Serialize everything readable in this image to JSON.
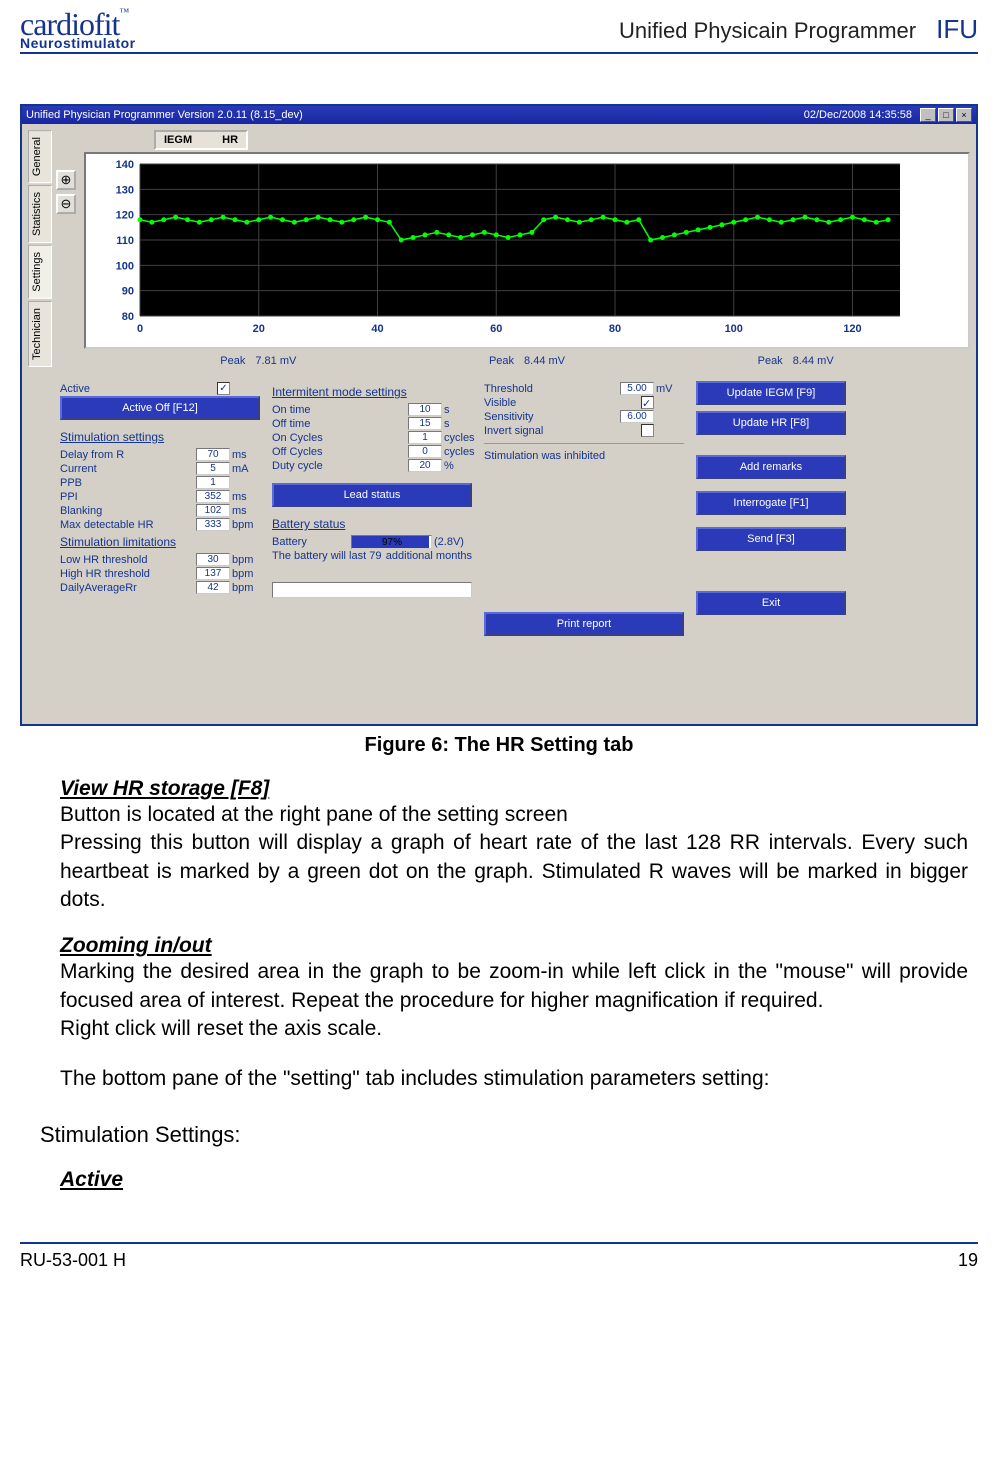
{
  "header": {
    "logo_main": "cardiofit",
    "tm": "™",
    "logo_sub": "Neurostimulator",
    "title": "Unified Physicain Programmer",
    "ifu": "IFU"
  },
  "footer": {
    "doc_id": "RU-53-001 H",
    "page": "19"
  },
  "figure_caption": "Figure 6: The HR Setting tab",
  "doc": {
    "h1": "View HR storage [F8]",
    "p1a": "Button is located at the right pane of the setting screen",
    "p1b": "Pressing this button will display a graph of heart rate of the last 128 RR intervals. Every such heartbeat is marked by a green dot on the graph. Stimulated R waves will be marked in bigger dots.",
    "h2": "Zooming in/out",
    "p2a": "Marking the desired area in the graph to be zoom-in while left click in the \"mouse\" will provide focused area of interest. Repeat the procedure for higher magnification if required.",
    "p2b": "Right click will reset the axis scale.",
    "p3": "The bottom pane of the \"setting\" tab includes stimulation parameters setting:",
    "section": "Stimulation Settings:",
    "h3": "Active"
  },
  "screenshot": {
    "title_left": "Unified Physician Programmer Version    2.0.11    (8.15_dev)",
    "title_right": "02/Dec/2008 14:35:58",
    "tabs": [
      "General",
      "Statistics",
      "Settings",
      "Technician"
    ],
    "legend": {
      "a": "IEGM",
      "b": "HR"
    },
    "chart": {
      "y_ticks": [
        80,
        90,
        100,
        110,
        120,
        130,
        140
      ],
      "x_ticks": [
        0,
        20,
        40,
        60,
        80,
        100,
        120
      ],
      "ylim": [
        80,
        140
      ],
      "xlim": [
        0,
        128
      ],
      "bg": "#000000",
      "grid_color": "#404040",
      "line_color": "#00ff00",
      "series": [
        [
          0,
          118
        ],
        [
          2,
          117
        ],
        [
          4,
          118
        ],
        [
          6,
          119
        ],
        [
          8,
          118
        ],
        [
          10,
          117
        ],
        [
          12,
          118
        ],
        [
          14,
          119
        ],
        [
          16,
          118
        ],
        [
          18,
          117
        ],
        [
          20,
          118
        ],
        [
          22,
          119
        ],
        [
          24,
          118
        ],
        [
          26,
          117
        ],
        [
          28,
          118
        ],
        [
          30,
          119
        ],
        [
          32,
          118
        ],
        [
          34,
          117
        ],
        [
          36,
          118
        ],
        [
          38,
          119
        ],
        [
          40,
          118
        ],
        [
          42,
          117
        ],
        [
          44,
          110
        ],
        [
          46,
          111
        ],
        [
          48,
          112
        ],
        [
          50,
          113
        ],
        [
          52,
          112
        ],
        [
          54,
          111
        ],
        [
          56,
          112
        ],
        [
          58,
          113
        ],
        [
          60,
          112
        ],
        [
          62,
          111
        ],
        [
          64,
          112
        ],
        [
          66,
          113
        ],
        [
          68,
          118
        ],
        [
          70,
          119
        ],
        [
          72,
          118
        ],
        [
          74,
          117
        ],
        [
          76,
          118
        ],
        [
          78,
          119
        ],
        [
          80,
          118
        ],
        [
          82,
          117
        ],
        [
          84,
          118
        ],
        [
          86,
          110
        ],
        [
          88,
          111
        ],
        [
          90,
          112
        ],
        [
          92,
          113
        ],
        [
          94,
          114
        ],
        [
          96,
          115
        ],
        [
          98,
          116
        ],
        [
          100,
          117
        ],
        [
          102,
          118
        ],
        [
          104,
          119
        ],
        [
          106,
          118
        ],
        [
          108,
          117
        ],
        [
          110,
          118
        ],
        [
          112,
          119
        ],
        [
          114,
          118
        ],
        [
          116,
          117
        ],
        [
          118,
          118
        ],
        [
          120,
          119
        ],
        [
          122,
          118
        ],
        [
          124,
          117
        ],
        [
          126,
          118
        ]
      ]
    },
    "peaks": [
      {
        "label": "Peak",
        "value": "7.81 mV"
      },
      {
        "label": "Peak",
        "value": "8.44 mV"
      },
      {
        "label": "Peak",
        "value": "8.44 mV"
      }
    ],
    "col1": {
      "active_label": "Active",
      "active_off_btn": "Active Off [F12]",
      "stim_title": "Stimulation settings",
      "stim_rows": [
        {
          "lbl": "Delay from R",
          "val": "70",
          "unit": "ms"
        },
        {
          "lbl": "Current",
          "val": "5",
          "unit": "mA"
        },
        {
          "lbl": "PPB",
          "val": "1",
          "unit": ""
        },
        {
          "lbl": "PPI",
          "val": "352",
          "unit": "ms"
        },
        {
          "lbl": "Blanking",
          "val": "102",
          "unit": "ms"
        },
        {
          "lbl": "Max detectable HR",
          "val": "333",
          "unit": "bpm"
        }
      ],
      "lim_title": "Stimulation limitations",
      "lim_rows": [
        {
          "lbl": "Low HR threshold",
          "val": "30",
          "unit": "bpm"
        },
        {
          "lbl": "High HR threshold",
          "val": "137",
          "unit": "bpm"
        },
        {
          "lbl": "DailyAverageRr",
          "val": "42",
          "unit": "bpm"
        }
      ]
    },
    "col2": {
      "int_title": "Intermitent mode settings",
      "int_rows": [
        {
          "lbl": "On time",
          "val": "10",
          "unit": "s"
        },
        {
          "lbl": "Off time",
          "val": "15",
          "unit": "s"
        },
        {
          "lbl": "On Cycles",
          "val": "1",
          "unit": "cycles"
        },
        {
          "lbl": "Off Cycles",
          "val": "0",
          "unit": "cycles"
        },
        {
          "lbl": "Duty cycle",
          "val": "20",
          "unit": "%"
        }
      ],
      "lead_btn": "Lead status",
      "bat_title": "Battery status",
      "bat_label": "Battery",
      "bat_pct": "97%",
      "bat_volt": "(2.8V)",
      "bat_life_a": "The battery will last 79",
      "bat_life_b": "additional months"
    },
    "col3": {
      "rows": [
        {
          "lbl": "Threshold",
          "val": "5.00",
          "unit": "mV"
        },
        {
          "lbl": "Visible",
          "val": "",
          "unit": "",
          "check": true
        },
        {
          "lbl": "Sensitivity",
          "val": "6.00",
          "unit": ""
        },
        {
          "lbl": "Invert signal",
          "val": "",
          "unit": "",
          "check": false
        }
      ],
      "inhibited": "Stimulation was inhibited",
      "print_btn": "Print report"
    },
    "side_buttons": [
      "Update IEGM [F9]",
      "Update HR [F8]",
      "Add remarks",
      "Interrogate [F1]",
      "Send [F3]",
      "Exit"
    ]
  }
}
